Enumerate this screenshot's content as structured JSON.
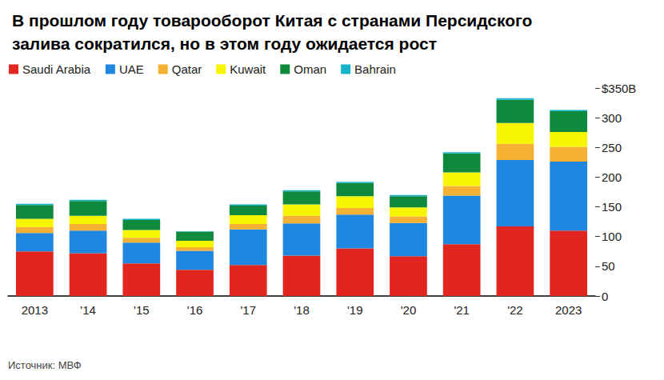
{
  "chart_data": {
    "type": "bar",
    "title": "В прошлом году товарооборот Китая с странами Персидского\nзалива сократился, но в этом году ожидается рост",
    "source": "Источник: МВФ",
    "categories": [
      "2013",
      "'14",
      "'15",
      "'16",
      "'17",
      "'18",
      "'19",
      "'20",
      "'21",
      "'22",
      "2023"
    ],
    "series": [
      {
        "name": "Saudi Arabia",
        "color": "#e0261f",
        "values": [
          75,
          72,
          55,
          44,
          52,
          68,
          80,
          67,
          87,
          117,
          110
        ]
      },
      {
        "name": "UAE",
        "color": "#1f87e0",
        "values": [
          31,
          38,
          35,
          32,
          60,
          54,
          57,
          56,
          82,
          112,
          116
        ]
      },
      {
        "name": "Qatar",
        "color": "#f5b133",
        "values": [
          10,
          11,
          8,
          6,
          9,
          13,
          11,
          11,
          16,
          27,
          25
        ]
      },
      {
        "name": "Kuwait",
        "color": "#f7f500",
        "values": [
          14,
          14,
          13,
          11,
          15,
          19,
          20,
          15,
          23,
          35,
          25
        ]
      },
      {
        "name": "Oman",
        "color": "#0f8a3c",
        "values": [
          23,
          25,
          17,
          15,
          16,
          22,
          22,
          19,
          32,
          39,
          35
        ]
      },
      {
        "name": "Bahrain",
        "color": "#17b3c9",
        "values": [
          2,
          2,
          2,
          1,
          2,
          2,
          2,
          2,
          2,
          3,
          2
        ]
      }
    ],
    "stacked": true,
    "ylim": [
      0,
      350
    ],
    "yticks": [
      0,
      50,
      100,
      150,
      200,
      250,
      300,
      {
        "value": 350,
        "label": "$350B"
      }
    ],
    "grid": false,
    "legend": "top-left"
  }
}
